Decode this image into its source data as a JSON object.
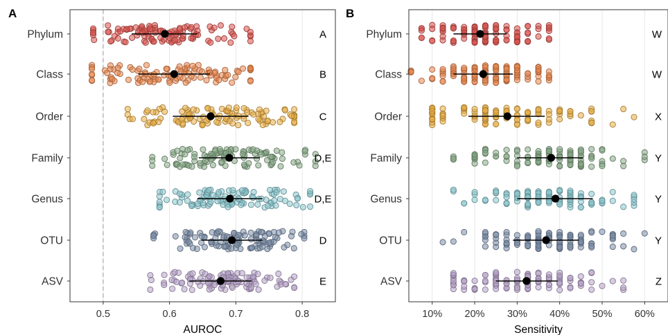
{
  "chart_data": [
    {
      "panel": "A",
      "type": "scatter",
      "xlabel": "AUROC",
      "xlim": [
        0.45,
        0.85
      ],
      "xticks": [
        0.5,
        0.6,
        0.7,
        0.8
      ],
      "xtick_labels": [
        "0.5",
        "0.6",
        "0.7",
        "0.8"
      ],
      "reference_line": 0.5,
      "categories": [
        "Phylum",
        "Class",
        "Order",
        "Family",
        "Genus",
        "OTU",
        "ASV"
      ],
      "series": [
        {
          "category": "Phylum",
          "color": "#d9534f",
          "mean": 0.593,
          "ci": [
            0.543,
            0.642
          ],
          "range": [
            0.485,
            0.722
          ],
          "letter": "A"
        },
        {
          "category": "Class",
          "color": "#e8874f",
          "mean": 0.607,
          "ci": [
            0.553,
            0.661
          ],
          "range": [
            0.483,
            0.722
          ],
          "letter": "B"
        },
        {
          "category": "Order",
          "color": "#e8ad45",
          "mean": 0.662,
          "ci": [
            0.605,
            0.719
          ],
          "range": [
            0.537,
            0.788
          ],
          "letter": "C"
        },
        {
          "category": "Family",
          "color": "#86a886",
          "mean": 0.69,
          "ci": [
            0.644,
            0.736
          ],
          "range": [
            0.574,
            0.82
          ],
          "letter": "D,E"
        },
        {
          "category": "Genus",
          "color": "#8bc6cd",
          "mean": 0.691,
          "ci": [
            0.642,
            0.74
          ],
          "range": [
            0.585,
            0.812
          ],
          "letter": "D,E"
        },
        {
          "category": "OTU",
          "color": "#7c8ea8",
          "mean": 0.694,
          "ci": [
            0.648,
            0.74
          ],
          "range": [
            0.576,
            0.803
          ],
          "letter": "D"
        },
        {
          "category": "ASV",
          "color": "#b7a3c9",
          "mean": 0.677,
          "ci": [
            0.63,
            0.724
          ],
          "range": [
            0.571,
            0.788
          ],
          "letter": "E"
        }
      ]
    },
    {
      "panel": "B",
      "type": "scatter",
      "xlabel": "Sensitivity",
      "xlim": [
        0.045,
        0.655
      ],
      "xticks": [
        0.1,
        0.2,
        0.3,
        0.4,
        0.5,
        0.6
      ],
      "xtick_labels": [
        "10%",
        "20%",
        "30%",
        "40%",
        "50%",
        "60%"
      ],
      "categories": [
        "Phylum",
        "Class",
        "Order",
        "Family",
        "Genus",
        "OTU",
        "ASV"
      ],
      "series": [
        {
          "category": "Phylum",
          "color": "#d9534f",
          "mean": 0.213,
          "ci": [
            0.15,
            0.275
          ],
          "range": [
            0.065,
            0.378
          ],
          "letter": "W"
        },
        {
          "category": "Class",
          "color": "#e8874f",
          "mean": 0.22,
          "ci": [
            0.15,
            0.29
          ],
          "range": [
            0.06,
            0.38
          ],
          "letter": "W"
        },
        {
          "category": "Order",
          "color": "#e8ad45",
          "mean": 0.277,
          "ci": [
            0.185,
            0.365
          ],
          "range": [
            0.105,
            0.58
          ],
          "letter": "X"
        },
        {
          "category": "Family",
          "color": "#86a886",
          "mean": 0.38,
          "ci": [
            0.3,
            0.455
          ],
          "range": [
            0.155,
            0.6
          ],
          "letter": "Y"
        },
        {
          "category": "Genus",
          "color": "#8bc6cd",
          "mean": 0.39,
          "ci": [
            0.3,
            0.478
          ],
          "range": [
            0.155,
            0.58
          ],
          "letter": "Y"
        },
        {
          "category": "OTU",
          "color": "#7c8ea8",
          "mean": 0.368,
          "ci": [
            0.29,
            0.445
          ],
          "range": [
            0.13,
            0.6
          ],
          "letter": "Y"
        },
        {
          "category": "ASV",
          "color": "#b7a3c9",
          "mean": 0.322,
          "ci": [
            0.25,
            0.395
          ],
          "range": [
            0.155,
            0.555
          ],
          "letter": "Z"
        }
      ]
    }
  ]
}
